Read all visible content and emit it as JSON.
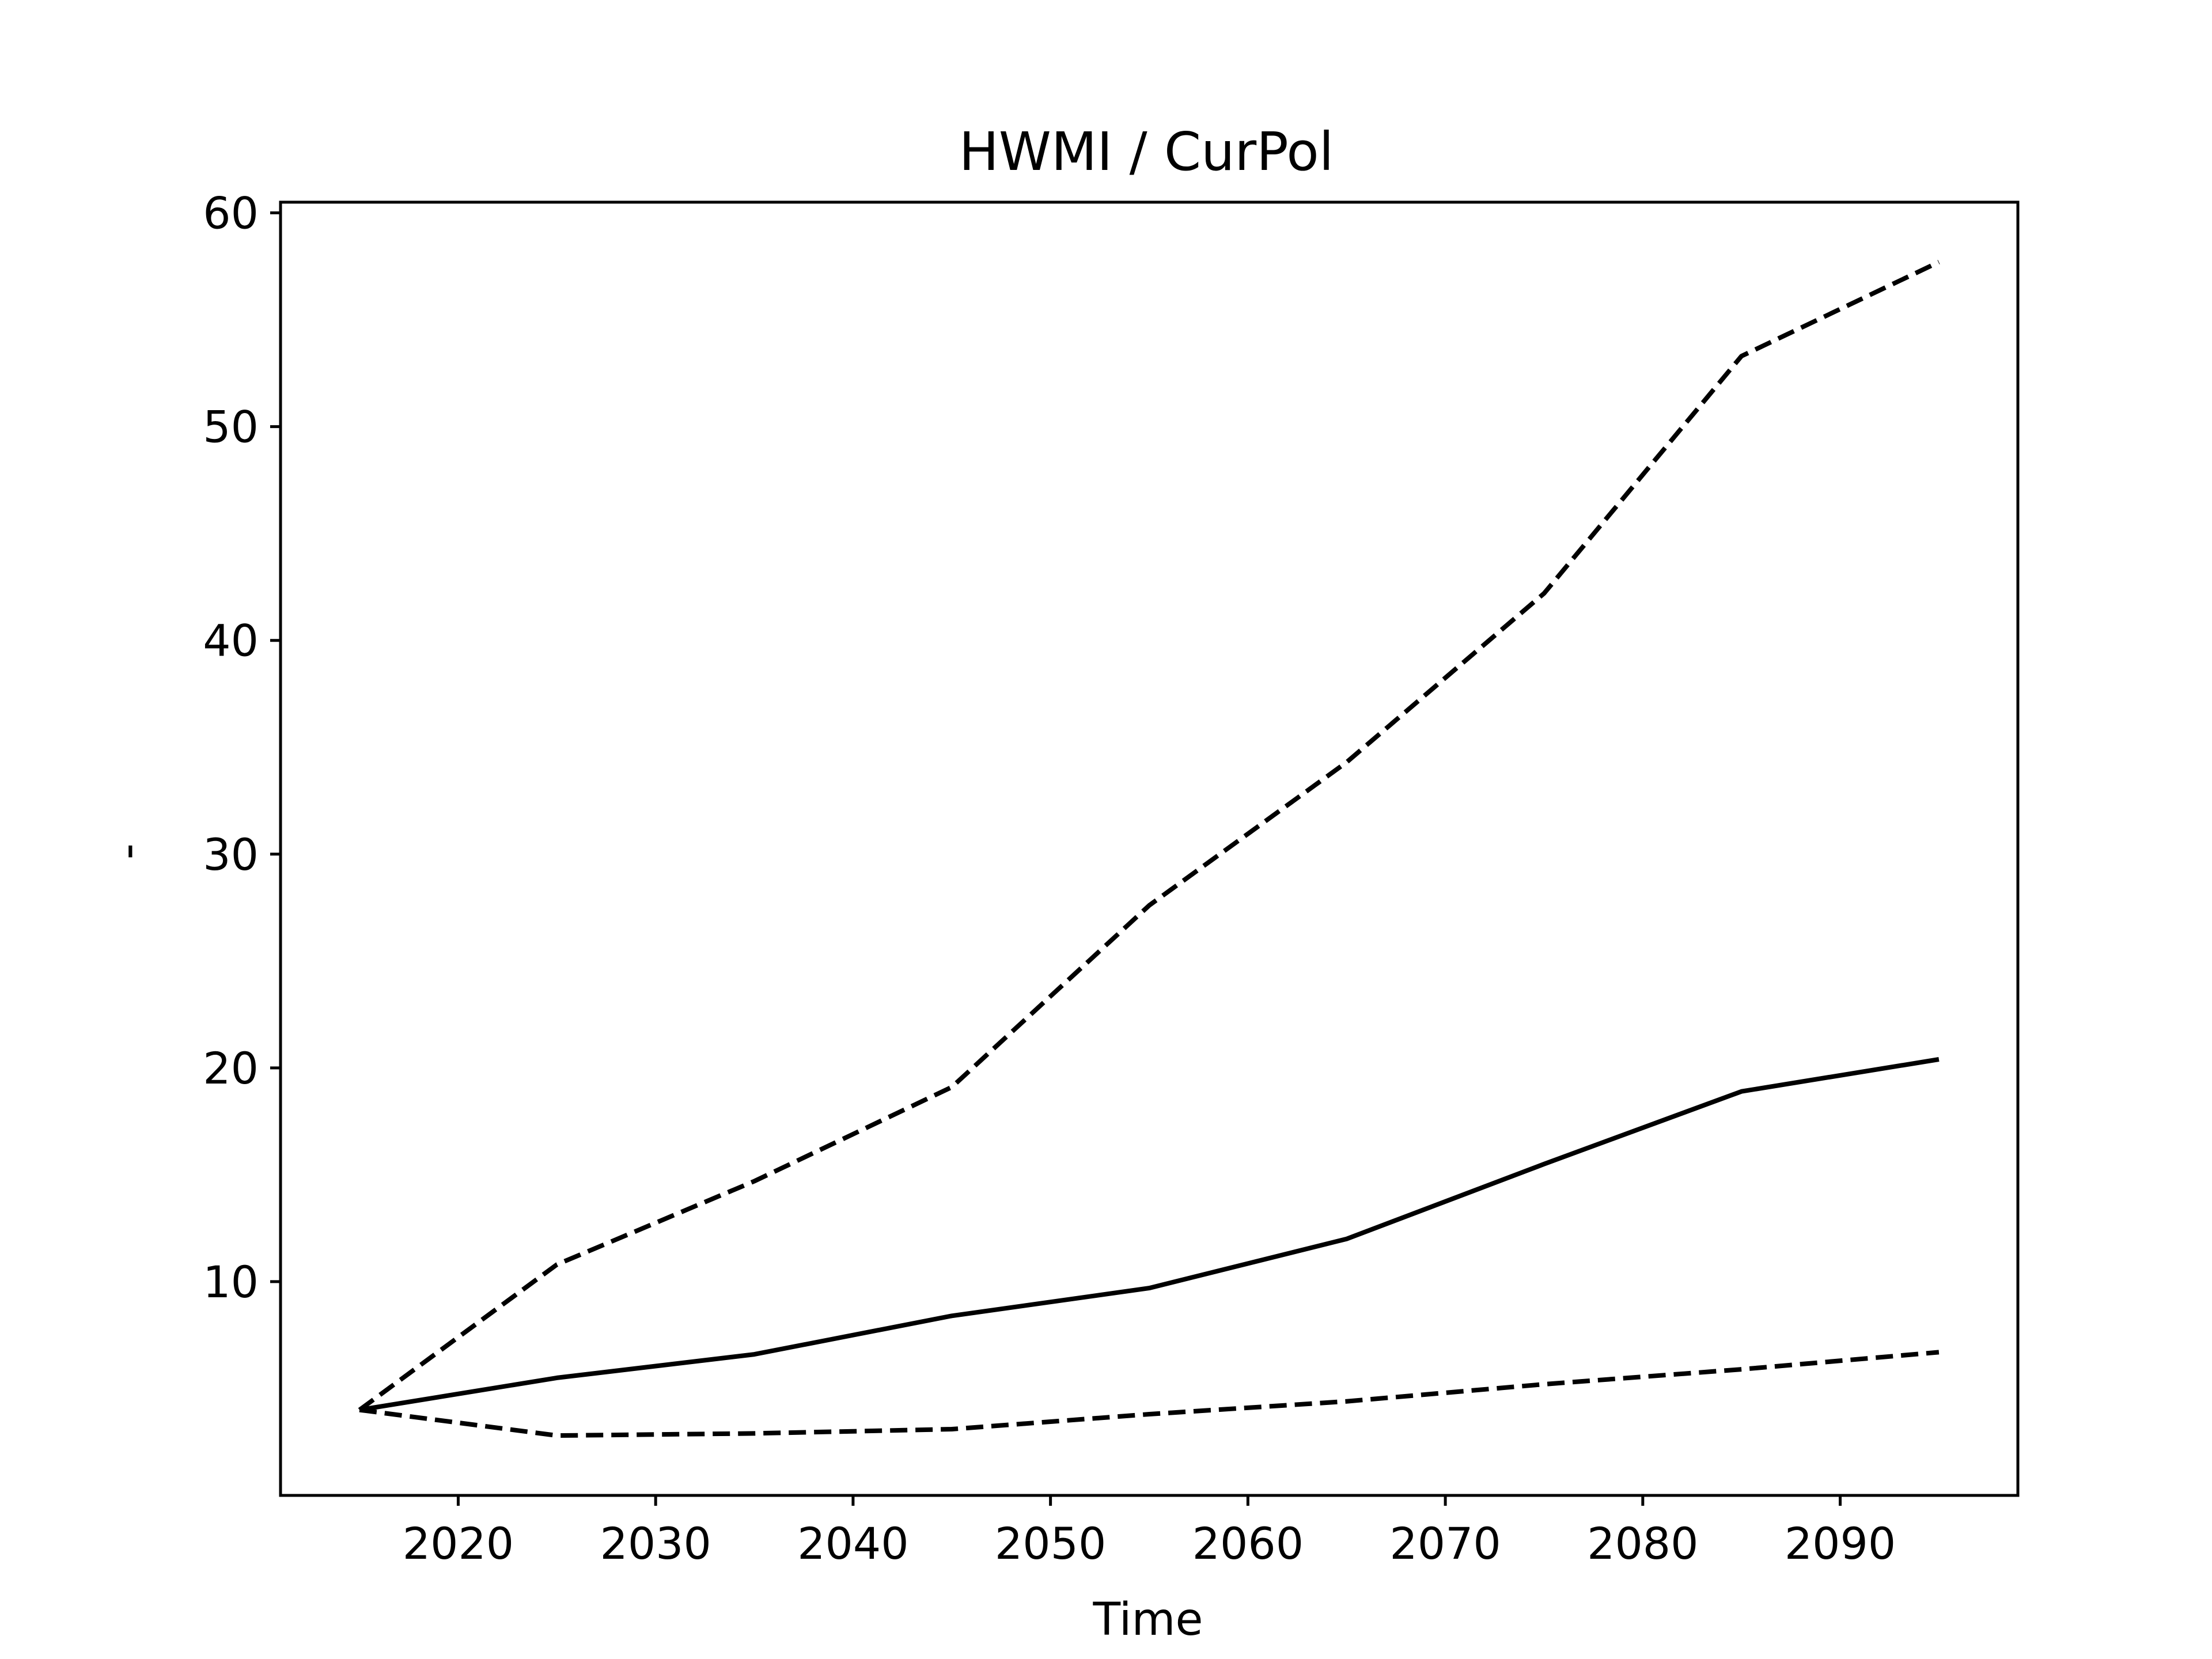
{
  "chart_data": {
    "type": "line",
    "title": "HWMI / CurPol",
    "xlabel": "Time",
    "ylabel": "-",
    "xlim": [
      2011,
      2099
    ],
    "ylim": [
      0,
      60.5
    ],
    "xticks": [
      2020,
      2030,
      2040,
      2050,
      2060,
      2070,
      2080,
      2090
    ],
    "yticks": [
      10,
      20,
      30,
      40,
      50,
      60
    ],
    "grid": false,
    "legend": "none",
    "x": [
      2015,
      2025,
      2035,
      2045,
      2055,
      2065,
      2075,
      2085,
      2095
    ],
    "series": [
      {
        "style": "dashed",
        "color": "#000000",
        "values": [
          4.0,
          10.8,
          14.7,
          19.1,
          27.6,
          34.3,
          42.2,
          53.3,
          57.7
        ]
      },
      {
        "style": "solid",
        "color": "#000000",
        "values": [
          4.0,
          5.5,
          6.6,
          8.4,
          9.7,
          12.0,
          15.5,
          18.9,
          20.4
        ]
      },
      {
        "style": "dashed",
        "color": "#000000",
        "values": [
          4.0,
          2.8,
          2.9,
          3.1,
          3.8,
          4.4,
          5.2,
          5.9,
          6.7
        ]
      }
    ]
  }
}
